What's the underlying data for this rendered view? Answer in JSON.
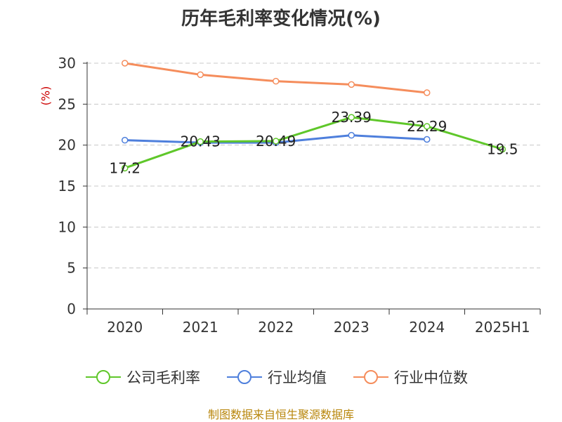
{
  "chart_data": {
    "type": "line",
    "title": "历年毛利率变化情况(%)",
    "ylabel": "(%)",
    "xlabel": "",
    "categories": [
      "2020",
      "2021",
      "2022",
      "2023",
      "2024",
      "2025H1"
    ],
    "ylim": [
      0,
      30
    ],
    "yticks": [
      0,
      5,
      10,
      15,
      20,
      25,
      30
    ],
    "grid": true,
    "legend_position": "bottom",
    "series": [
      {
        "name": "公司毛利率",
        "color": "#5fc72a",
        "values": [
          17.2,
          20.43,
          20.49,
          23.39,
          22.29,
          19.5
        ],
        "labels": [
          "17.2",
          "20.43",
          "20.49",
          "23.39",
          "22.29",
          "19.5"
        ]
      },
      {
        "name": "行业均值",
        "color": "#4e7fdc",
        "values": [
          20.6,
          20.3,
          20.3,
          21.2,
          20.7,
          null
        ]
      },
      {
        "name": "行业中位数",
        "color": "#f58d5c",
        "values": [
          30.0,
          28.6,
          27.8,
          27.4,
          26.4,
          null
        ]
      }
    ]
  },
  "source": "制图数据来自恒生聚源数据库"
}
